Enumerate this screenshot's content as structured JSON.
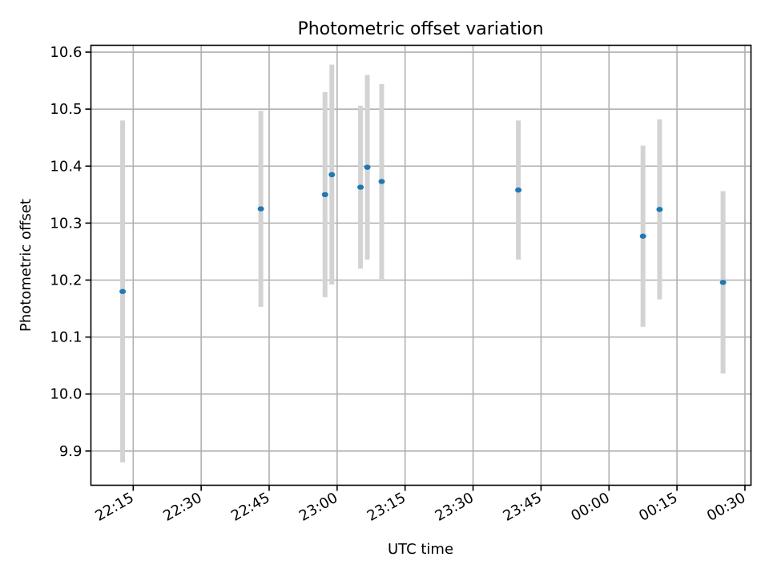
{
  "chart_data": {
    "type": "scatter",
    "title": "Photometric offset variation",
    "xlabel": "UTC time",
    "ylabel": "Photometric offset",
    "grid": true,
    "x_ticks": [
      "22:15",
      "22:30",
      "22:45",
      "23:00",
      "23:15",
      "23:30",
      "23:45",
      "00:00",
      "00:15",
      "00:30"
    ],
    "y_ticks": [
      "9.9",
      "10.0",
      "10.1",
      "10.2",
      "10.3",
      "10.4",
      "10.5",
      "10.6"
    ],
    "ylim": [
      9.84,
      10.612
    ],
    "xlim": [
      "22:05:40",
      "00:31:20"
    ],
    "marker_color": "#1f77b4",
    "errorbar_color": "#d3d3d3",
    "points": [
      {
        "x": "22:12:40",
        "y": 10.18,
        "yerr": 0.3
      },
      {
        "x": "22:43:10",
        "y": 10.325,
        "yerr": 0.172
      },
      {
        "x": "22:57:20",
        "y": 10.35,
        "yerr": 0.18
      },
      {
        "x": "22:58:50",
        "y": 10.385,
        "yerr": 0.193
      },
      {
        "x": "23:05:10",
        "y": 10.363,
        "yerr": 0.143
      },
      {
        "x": "23:06:40",
        "y": 10.398,
        "yerr": 0.162
      },
      {
        "x": "23:09:50",
        "y": 10.373,
        "yerr": 0.171
      },
      {
        "x": "23:40:00",
        "y": 10.358,
        "yerr": 0.122
      },
      {
        "x": "00:07:30",
        "y": 10.277,
        "yerr": 0.159
      },
      {
        "x": "00:11:10",
        "y": 10.324,
        "yerr": 0.158
      },
      {
        "x": "00:25:10",
        "y": 10.196,
        "yerr": 0.16
      }
    ]
  }
}
